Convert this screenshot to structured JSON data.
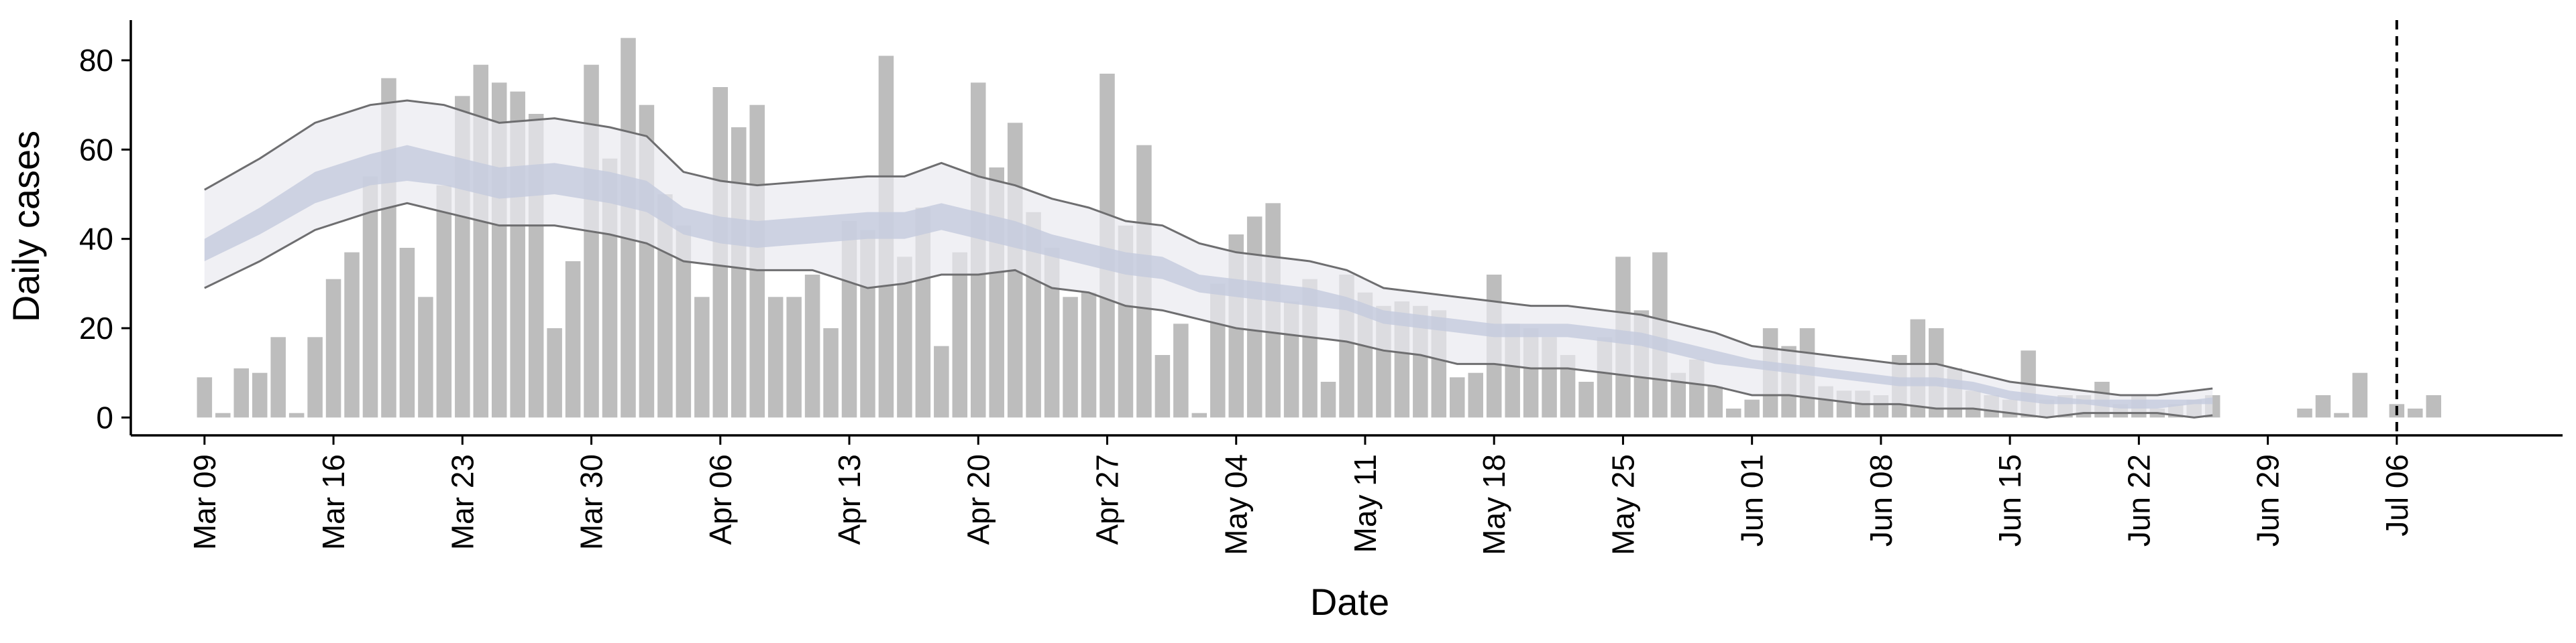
{
  "chart_data": {
    "type": "bar",
    "title": "",
    "xlabel": "Date",
    "ylabel": "Daily cases",
    "ylim": [
      -4,
      89
    ],
    "yticks": [
      0,
      20,
      40,
      60,
      80
    ],
    "xlim": [
      "2020-03-05",
      "2020-07-15"
    ],
    "xticks": [
      "2020-03-09",
      "2020-03-16",
      "2020-03-23",
      "2020-03-30",
      "2020-04-06",
      "2020-04-13",
      "2020-04-20",
      "2020-04-27",
      "2020-05-04",
      "2020-05-11",
      "2020-05-18",
      "2020-05-25",
      "2020-06-01",
      "2020-06-08",
      "2020-06-15",
      "2020-06-22",
      "2020-06-29",
      "2020-07-06"
    ],
    "xtick_labels": [
      "Mar 09",
      "Mar 16",
      "Mar 23",
      "Mar 30",
      "Apr 06",
      "Apr 13",
      "Apr 20",
      "Apr 27",
      "May 04",
      "May 11",
      "May 18",
      "May 25",
      "Jun 01",
      "Jun 08",
      "Jun 15",
      "Jun 22",
      "Jun 29",
      "Jul 06"
    ],
    "grid": false,
    "vline": {
      "date": "2020-07-06",
      "style": "dashed",
      "color": "#000000"
    },
    "bar_color": "#bdbdbd",
    "band_colors": {
      "outer": "#e9eaf0",
      "inner": "#c4cbdd",
      "center": "#a5aec8",
      "bound_line": "#6e6e70"
    },
    "series": [
      {
        "kind": "bar",
        "x_start": "2020-03-09",
        "values": [
          9,
          1,
          11,
          10,
          18,
          1,
          18,
          31,
          37,
          54,
          76,
          38,
          27,
          52,
          72,
          79,
          75,
          73,
          68,
          20,
          35,
          79,
          58,
          85,
          70,
          50,
          43,
          27,
          74,
          65,
          70,
          27,
          27,
          32,
          20,
          44,
          42,
          81,
          36,
          47,
          16,
          37,
          75,
          56,
          66,
          46,
          38,
          27,
          28,
          77,
          43,
          61,
          14,
          21,
          1,
          30,
          41,
          45,
          48,
          26,
          31,
          8,
          32,
          28,
          25,
          26,
          25,
          24,
          9,
          10,
          32,
          21,
          20,
          18,
          14,
          8,
          18,
          36,
          24,
          37,
          10,
          13,
          7,
          2,
          4,
          20,
          16,
          20,
          7,
          6,
          6,
          5,
          14,
          22,
          20,
          11,
          6,
          5,
          4,
          15,
          4,
          5,
          5,
          8,
          3,
          5,
          2,
          3,
          4,
          5,
          0,
          0,
          0,
          0,
          2,
          5,
          1,
          10,
          0,
          3,
          2,
          5
        ]
      },
      {
        "kind": "band",
        "x_start": "2020-03-09",
        "x_end": "2020-06-26",
        "upper_anchors": [
          [
            0,
            51
          ],
          [
            3,
            58
          ],
          [
            6,
            66
          ],
          [
            9,
            70
          ],
          [
            11,
            71
          ],
          [
            13,
            70
          ],
          [
            16,
            66
          ],
          [
            19,
            67
          ],
          [
            22,
            65
          ],
          [
            24,
            63
          ],
          [
            26,
            55
          ],
          [
            28,
            53
          ],
          [
            30,
            52
          ],
          [
            33,
            53
          ],
          [
            36,
            54
          ],
          [
            38,
            54
          ],
          [
            40,
            57
          ],
          [
            42,
            54
          ],
          [
            44,
            52
          ],
          [
            46,
            49
          ],
          [
            48,
            47
          ],
          [
            50,
            44
          ],
          [
            52,
            43
          ],
          [
            54,
            39
          ],
          [
            56,
            37
          ],
          [
            58,
            36
          ],
          [
            60,
            35
          ],
          [
            62,
            33
          ],
          [
            64,
            29
          ],
          [
            66,
            28
          ],
          [
            68,
            27
          ],
          [
            70,
            26
          ],
          [
            72,
            25
          ],
          [
            74,
            25
          ],
          [
            76,
            24
          ],
          [
            78,
            23
          ],
          [
            80,
            21
          ],
          [
            82,
            19
          ],
          [
            84,
            16
          ],
          [
            86,
            15
          ],
          [
            88,
            14
          ],
          [
            90,
            13
          ],
          [
            92,
            12
          ],
          [
            94,
            12
          ],
          [
            96,
            10
          ],
          [
            98,
            8
          ],
          [
            100,
            7
          ],
          [
            102,
            6
          ],
          [
            104,
            5
          ],
          [
            106,
            5
          ],
          [
            108,
            6
          ],
          [
            110,
            7
          ],
          [
            112,
            11
          ]
        ],
        "inner_upper_anchors": [
          [
            0,
            40
          ],
          [
            3,
            47
          ],
          [
            6,
            55
          ],
          [
            9,
            59
          ],
          [
            11,
            61
          ],
          [
            13,
            59
          ],
          [
            16,
            56
          ],
          [
            19,
            57
          ],
          [
            22,
            55
          ],
          [
            24,
            53
          ],
          [
            26,
            47
          ],
          [
            28,
            45
          ],
          [
            30,
            44
          ],
          [
            33,
            45
          ],
          [
            36,
            46
          ],
          [
            38,
            46
          ],
          [
            40,
            48
          ],
          [
            42,
            46
          ],
          [
            44,
            44
          ],
          [
            46,
            41
          ],
          [
            48,
            39
          ],
          [
            50,
            37
          ],
          [
            52,
            36
          ],
          [
            54,
            32
          ],
          [
            56,
            31
          ],
          [
            58,
            30
          ],
          [
            60,
            29
          ],
          [
            62,
            27
          ],
          [
            64,
            24
          ],
          [
            66,
            23
          ],
          [
            68,
            22
          ],
          [
            70,
            21
          ],
          [
            72,
            21
          ],
          [
            74,
            21
          ],
          [
            76,
            20
          ],
          [
            78,
            19
          ],
          [
            80,
            17
          ],
          [
            82,
            15
          ],
          [
            84,
            13
          ],
          [
            86,
            12
          ],
          [
            88,
            11
          ],
          [
            90,
            10
          ],
          [
            92,
            9
          ],
          [
            94,
            9
          ],
          [
            96,
            8
          ],
          [
            98,
            6
          ],
          [
            100,
            5
          ],
          [
            102,
            4
          ],
          [
            104,
            4
          ],
          [
            106,
            4
          ],
          [
            108,
            4
          ],
          [
            110,
            5
          ],
          [
            112,
            7
          ]
        ],
        "inner_lower_anchors": [
          [
            0,
            35
          ],
          [
            3,
            41
          ],
          [
            6,
            48
          ],
          [
            9,
            52
          ],
          [
            11,
            53
          ],
          [
            13,
            52
          ],
          [
            16,
            49
          ],
          [
            19,
            50
          ],
          [
            22,
            48
          ],
          [
            24,
            46
          ],
          [
            26,
            41
          ],
          [
            28,
            39
          ],
          [
            30,
            38
          ],
          [
            33,
            39
          ],
          [
            36,
            40
          ],
          [
            38,
            40
          ],
          [
            40,
            42
          ],
          [
            42,
            40
          ],
          [
            44,
            38
          ],
          [
            46,
            36
          ],
          [
            48,
            34
          ],
          [
            50,
            32
          ],
          [
            52,
            31
          ],
          [
            54,
            28
          ],
          [
            56,
            27
          ],
          [
            58,
            26
          ],
          [
            60,
            25
          ],
          [
            62,
            24
          ],
          [
            64,
            21
          ],
          [
            66,
            20
          ],
          [
            68,
            19
          ],
          [
            70,
            18
          ],
          [
            72,
            18
          ],
          [
            74,
            18
          ],
          [
            76,
            17
          ],
          [
            78,
            16
          ],
          [
            80,
            14
          ],
          [
            82,
            12
          ],
          [
            84,
            11
          ],
          [
            86,
            10
          ],
          [
            88,
            9
          ],
          [
            90,
            8
          ],
          [
            92,
            7
          ],
          [
            94,
            7
          ],
          [
            96,
            6
          ],
          [
            98,
            4
          ],
          [
            100,
            3
          ],
          [
            102,
            3
          ],
          [
            104,
            2
          ],
          [
            106,
            2
          ],
          [
            108,
            3
          ],
          [
            110,
            3
          ],
          [
            112,
            4
          ]
        ],
        "lower_anchors": [
          [
            0,
            29
          ],
          [
            3,
            35
          ],
          [
            6,
            42
          ],
          [
            9,
            46
          ],
          [
            11,
            48
          ],
          [
            13,
            46
          ],
          [
            16,
            43
          ],
          [
            19,
            43
          ],
          [
            22,
            41
          ],
          [
            24,
            39
          ],
          [
            26,
            35
          ],
          [
            28,
            34
          ],
          [
            30,
            33
          ],
          [
            33,
            33
          ],
          [
            36,
            29
          ],
          [
            38,
            30
          ],
          [
            40,
            32
          ],
          [
            42,
            32
          ],
          [
            44,
            33
          ],
          [
            46,
            29
          ],
          [
            48,
            28
          ],
          [
            50,
            25
          ],
          [
            52,
            24
          ],
          [
            54,
            22
          ],
          [
            56,
            20
          ],
          [
            58,
            19
          ],
          [
            60,
            18
          ],
          [
            62,
            17
          ],
          [
            64,
            15
          ],
          [
            66,
            14
          ],
          [
            68,
            12
          ],
          [
            70,
            12
          ],
          [
            72,
            11
          ],
          [
            74,
            11
          ],
          [
            76,
            10
          ],
          [
            78,
            9
          ],
          [
            80,
            8
          ],
          [
            82,
            7
          ],
          [
            84,
            5
          ],
          [
            86,
            5
          ],
          [
            88,
            4
          ],
          [
            90,
            3
          ],
          [
            92,
            3
          ],
          [
            94,
            2
          ],
          [
            96,
            2
          ],
          [
            98,
            1
          ],
          [
            100,
            0
          ],
          [
            102,
            1
          ],
          [
            104,
            1
          ],
          [
            106,
            1
          ],
          [
            108,
            0
          ],
          [
            110,
            1
          ],
          [
            112,
            1
          ]
        ]
      }
    ]
  }
}
